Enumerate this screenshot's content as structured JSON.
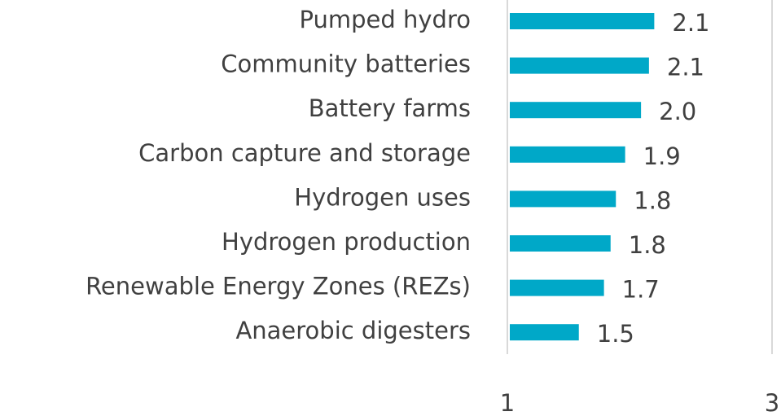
{
  "chart_data": {
    "type": "bar",
    "orientation": "horizontal",
    "categories": [
      "Pumped hydro",
      "Community batteries",
      "Battery farms",
      "Carbon capture and storage",
      "Hydrogen uses",
      "Hydrogen production",
      "Renewable Energy Zones (REZs)",
      "Anaerobic digesters"
    ],
    "values": [
      2.11,
      2.07,
      2.01,
      1.89,
      1.82,
      1.78,
      1.73,
      1.54
    ],
    "value_labels": [
      "2.1",
      "2.1",
      "2.0",
      "1.9",
      "1.8",
      "1.8",
      "1.7",
      "1.5"
    ],
    "color": "#00a8c8",
    "xlim": [
      1,
      3
    ],
    "xticks": [
      1,
      3
    ],
    "grid": true
  }
}
